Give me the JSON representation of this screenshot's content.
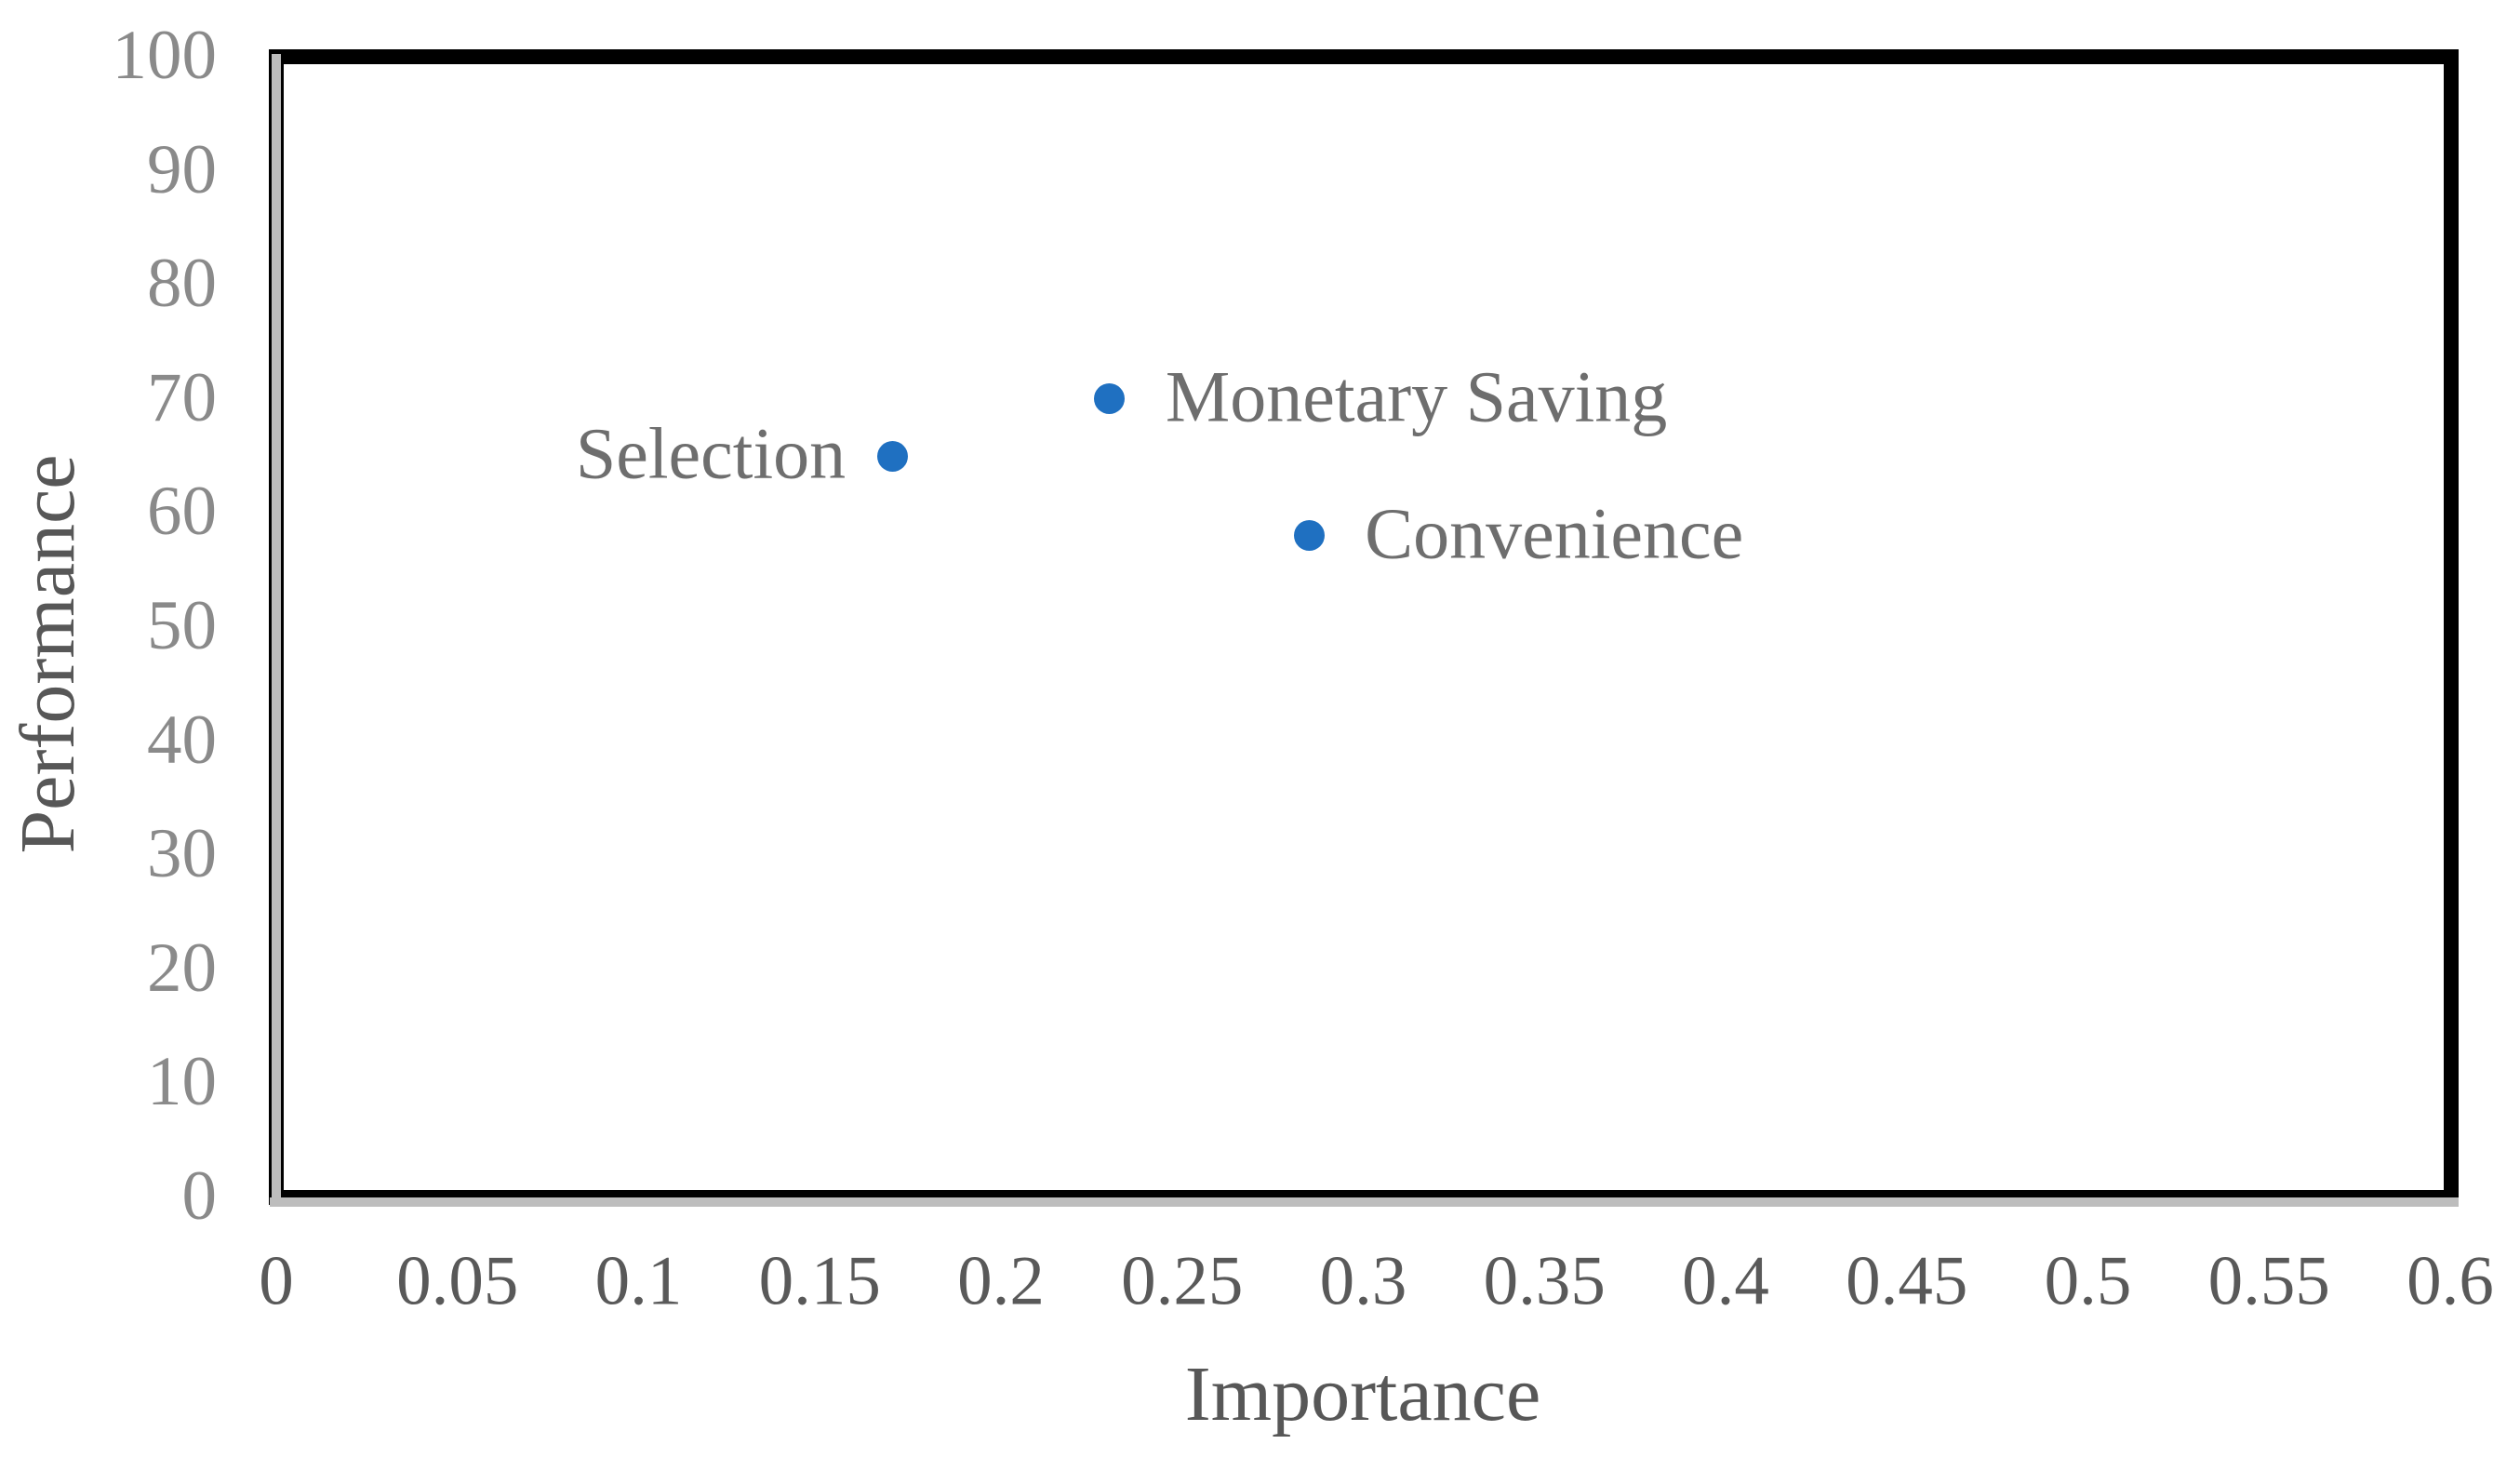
{
  "chart_data": {
    "type": "scatter",
    "title": "",
    "xlabel": "Importance",
    "ylabel": "Performance",
    "xlim": [
      0,
      0.6
    ],
    "ylim": [
      0,
      100
    ],
    "xtick_labels": [
      "0",
      "0.05",
      "0.1",
      "0.15",
      "0.2",
      "0.25",
      "0.3",
      "0.35",
      "0.4",
      "0.45",
      "0.5",
      "0.55",
      "0.6"
    ],
    "ytick_labels": [
      "0",
      "10",
      "20",
      "30",
      "40",
      "50",
      "60",
      "70",
      "80",
      "90",
      "100"
    ],
    "grid": false,
    "legend": "none",
    "marker_color": "#1f70c1",
    "points": [
      {
        "label": "Selection",
        "x": 0.17,
        "y": 65,
        "label_side": "left"
      },
      {
        "label": "Monetary Saving",
        "x": 0.23,
        "y": 70,
        "label_side": "right"
      },
      {
        "label": "Convenience",
        "x": 0.285,
        "y": 58,
        "label_side": "right"
      }
    ]
  }
}
